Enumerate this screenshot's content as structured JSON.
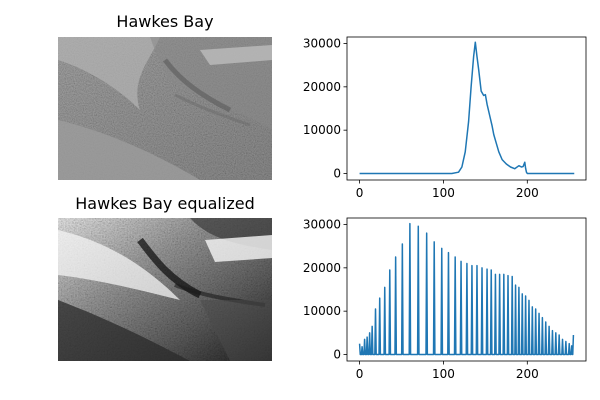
{
  "panels": {
    "original_title": "Hawkes Bay",
    "equalized_title": "Hawkes Bay equalized"
  },
  "colors": {
    "line": "#1f77b4",
    "axes": "#000000",
    "background": "#ffffff"
  },
  "chart_data": [
    {
      "type": "line",
      "title": "",
      "xlabel": "",
      "ylabel": "",
      "xlim": [
        -15,
        270
      ],
      "ylim": [
        -1500,
        31500
      ],
      "xticks": [
        0,
        100,
        200
      ],
      "yticks": [
        0,
        10000,
        20000,
        30000
      ],
      "grid": false,
      "series": [
        {
          "x": [
            0,
            110,
            118,
            122,
            126,
            130,
            133,
            136,
            138,
            140,
            142,
            145,
            148,
            150,
            152,
            155,
            158,
            160,
            163,
            166,
            170,
            175,
            180,
            185,
            190,
            193,
            195,
            197,
            198,
            199,
            200,
            205,
            210,
            256
          ],
          "y": [
            0,
            0,
            300,
            1500,
            5000,
            12000,
            20000,
            27000,
            30300,
            27000,
            24000,
            19000,
            18000,
            18200,
            16000,
            13500,
            11000,
            9000,
            7000,
            5000,
            3200,
            2200,
            1500,
            1100,
            1800,
            1500,
            1600,
            2600,
            1200,
            300,
            0,
            0,
            0,
            0
          ]
        }
      ]
    },
    {
      "type": "line",
      "title": "",
      "xlabel": "",
      "ylabel": "",
      "xlim": [
        -15,
        270
      ],
      "ylim": [
        -1500,
        31500
      ],
      "xticks": [
        0,
        100,
        200
      ],
      "yticks": [
        0,
        10000,
        20000,
        30000
      ],
      "grid": false,
      "series": [
        {
          "spike_x": [
            0,
            3,
            6,
            9,
            12,
            15,
            19,
            24,
            30,
            36,
            43,
            51,
            60,
            70,
            80,
            89,
            98,
            106,
            114,
            121,
            128,
            134,
            140,
            146,
            152,
            157,
            162,
            167,
            172,
            177,
            182,
            186,
            190,
            194,
            198,
            202,
            206,
            210,
            214,
            218,
            222,
            226,
            230,
            234,
            238,
            242,
            246,
            250,
            253,
            255
          ],
          "spike_y": [
            2500,
            1800,
            3500,
            4000,
            5000,
            6500,
            10500,
            13000,
            15500,
            19500,
            22500,
            25500,
            30200,
            29600,
            28000,
            26000,
            24500,
            23500,
            22500,
            21500,
            21000,
            20500,
            20500,
            20000,
            19700,
            19500,
            18500,
            18500,
            18500,
            18200,
            18000,
            16000,
            15500,
            14000,
            13500,
            12500,
            11000,
            10500,
            9500,
            8500,
            7500,
            6500,
            5500,
            5000,
            4500,
            3500,
            3000,
            2500,
            2000,
            4500
          ]
        }
      ]
    }
  ]
}
